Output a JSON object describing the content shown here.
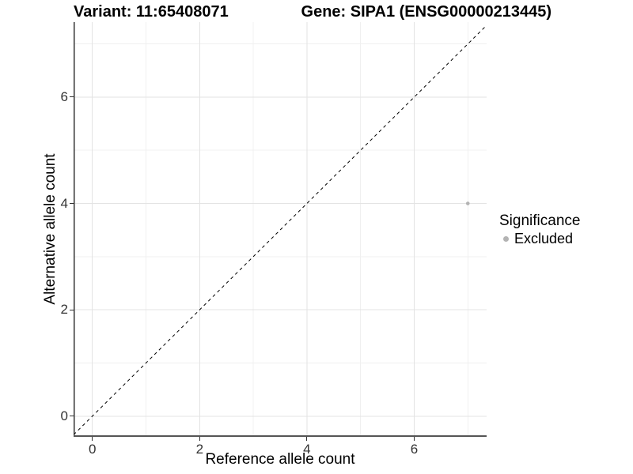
{
  "chart_data": {
    "type": "scatter",
    "titles": {
      "left": "Variant: 11:65408071",
      "right": "Gene: SIPA1 (ENSG00000213445)"
    },
    "xlabel": "Reference allele count",
    "ylabel": "Alternative allele count",
    "xlim": [
      -0.35,
      7.35
    ],
    "ylim": [
      -0.39,
      7.41
    ],
    "xticks": [
      0,
      2,
      4,
      6
    ],
    "yticks": [
      0,
      2,
      4,
      6
    ],
    "x_minor": [
      1,
      3,
      5,
      7
    ],
    "y_minor": [
      1,
      3,
      5,
      7
    ],
    "grid": {
      "major_color": "#e3e3e3",
      "minor_color": "#f0f0f0"
    },
    "identity_line": {
      "style": "dashed",
      "slope": 1,
      "intercept": 0,
      "color": "#000000",
      "dash": "4,4"
    },
    "series": [
      {
        "name": "Excluded",
        "color": "#b3b3b3",
        "point_radius": 2.3,
        "points": [
          {
            "x": 7,
            "y": 4
          }
        ]
      }
    ],
    "legend": {
      "title": "Significance",
      "position": "right",
      "entries": [
        {
          "label": "Excluded",
          "color": "#b3b3b3"
        }
      ]
    },
    "axis": {
      "line_color": "#333333",
      "bottom_line_color": "#555555",
      "tick_color": "#333333",
      "tick_label_color": "#333333"
    }
  }
}
